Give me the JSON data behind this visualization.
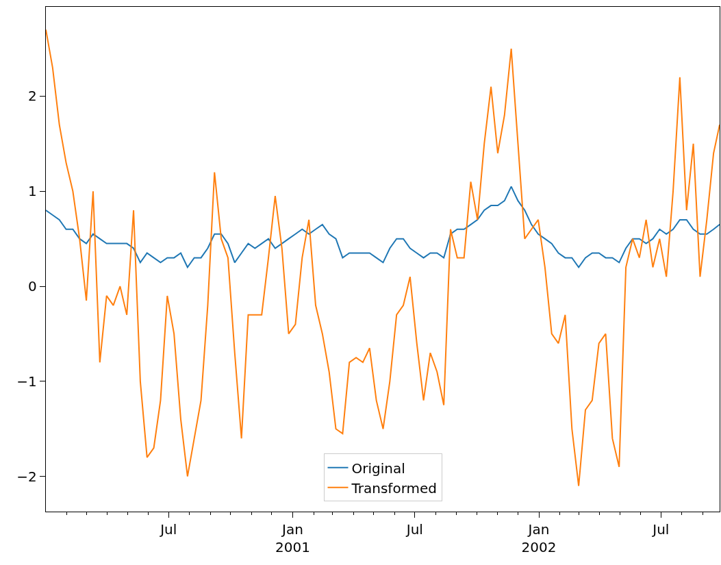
{
  "chart_data": {
    "type": "line",
    "x": [
      "2000-01-01",
      "2000-01-11",
      "2000-01-21",
      "2000-01-31",
      "2000-02-10",
      "2000-02-20",
      "2000-03-01",
      "2000-03-11",
      "2000-03-21",
      "2000-03-31",
      "2000-04-10",
      "2000-04-20",
      "2000-04-30",
      "2000-05-10",
      "2000-05-20",
      "2000-05-30",
      "2000-06-09",
      "2000-06-19",
      "2000-06-29",
      "2000-07-09",
      "2000-07-19",
      "2000-07-29",
      "2000-08-08",
      "2000-08-18",
      "2000-08-28",
      "2000-09-07",
      "2000-09-17",
      "2000-09-27",
      "2000-10-07",
      "2000-10-17",
      "2000-10-27",
      "2000-11-06",
      "2000-11-16",
      "2000-11-26",
      "2000-12-06",
      "2000-12-16",
      "2000-12-26",
      "2001-01-05",
      "2001-01-15",
      "2001-01-25",
      "2001-02-04",
      "2001-02-14",
      "2001-02-24",
      "2001-03-06",
      "2001-03-16",
      "2001-03-26",
      "2001-04-05",
      "2001-04-15",
      "2001-04-25",
      "2001-05-05",
      "2001-05-15",
      "2001-05-25",
      "2001-06-04",
      "2001-06-14",
      "2001-06-24",
      "2001-07-04",
      "2001-07-14",
      "2001-07-24",
      "2001-08-03",
      "2001-08-13",
      "2001-08-23",
      "2001-09-02",
      "2001-09-12",
      "2001-09-22",
      "2001-10-02",
      "2001-10-12",
      "2001-10-22",
      "2001-11-01",
      "2001-11-11",
      "2001-11-21",
      "2001-12-01",
      "2001-12-11",
      "2001-12-21",
      "2001-12-31",
      "2002-01-10",
      "2002-01-20",
      "2002-01-30",
      "2002-02-09",
      "2002-02-19",
      "2002-03-01",
      "2002-03-11",
      "2002-03-21",
      "2002-03-31",
      "2002-04-10",
      "2002-04-20",
      "2002-04-30",
      "2002-05-10",
      "2002-05-20",
      "2002-05-30",
      "2002-06-09",
      "2002-06-19",
      "2002-06-29",
      "2002-07-09",
      "2002-07-19",
      "2002-07-29",
      "2002-08-08",
      "2002-08-18",
      "2002-08-28",
      "2002-09-07",
      "2002-09-17",
      "2002-09-26"
    ],
    "series": [
      {
        "name": "Original",
        "color": "#1f77b4",
        "values": [
          0.8,
          0.75,
          0.7,
          0.6,
          0.6,
          0.5,
          0.45,
          0.55,
          0.5,
          0.45,
          0.45,
          0.45,
          0.45,
          0.4,
          0.25,
          0.35,
          0.3,
          0.25,
          0.3,
          0.3,
          0.35,
          0.2,
          0.3,
          0.3,
          0.4,
          0.55,
          0.55,
          0.45,
          0.25,
          0.35,
          0.45,
          0.4,
          0.45,
          0.5,
          0.4,
          0.45,
          0.5,
          0.55,
          0.6,
          0.55,
          0.6,
          0.65,
          0.55,
          0.5,
          0.3,
          0.35,
          0.35,
          0.35,
          0.35,
          0.3,
          0.25,
          0.4,
          0.5,
          0.5,
          0.4,
          0.35,
          0.3,
          0.35,
          0.35,
          0.3,
          0.55,
          0.6,
          0.6,
          0.65,
          0.7,
          0.8,
          0.85,
          0.85,
          0.9,
          1.05,
          0.9,
          0.8,
          0.65,
          0.55,
          0.5,
          0.45,
          0.35,
          0.3,
          0.3,
          0.2,
          0.3,
          0.35,
          0.35,
          0.3,
          0.3,
          0.25,
          0.4,
          0.5,
          0.5,
          0.45,
          0.5,
          0.6,
          0.55,
          0.6,
          0.7,
          0.7,
          0.6,
          0.55,
          0.55,
          0.6,
          0.65
        ]
      },
      {
        "name": "Transformed",
        "color": "#ff7f0e",
        "values": [
          2.7,
          2.3,
          1.7,
          1.3,
          1.0,
          0.5,
          -0.15,
          1.0,
          -0.8,
          -0.1,
          -0.2,
          0.0,
          -0.3,
          0.8,
          -1.0,
          -1.8,
          -1.7,
          -1.2,
          -0.1,
          -0.5,
          -1.4,
          -2.0,
          -1.6,
          -1.2,
          -0.2,
          1.2,
          0.5,
          0.3,
          -0.7,
          -1.6,
          -0.3,
          -0.3,
          -0.3,
          0.3,
          0.95,
          0.4,
          -0.5,
          -0.4,
          0.3,
          0.7,
          -0.2,
          -0.5,
          -0.9,
          -1.5,
          -1.55,
          -0.8,
          -0.75,
          -0.8,
          -0.65,
          -1.2,
          -1.5,
          -1.0,
          -0.3,
          -0.2,
          0.1,
          -0.6,
          -1.2,
          -0.7,
          -0.9,
          -1.25,
          0.6,
          0.3,
          0.3,
          1.1,
          0.7,
          1.5,
          2.1,
          1.4,
          1.8,
          2.5,
          1.5,
          0.5,
          0.6,
          0.7,
          0.2,
          -0.5,
          -0.6,
          -0.3,
          -1.5,
          -2.1,
          -1.3,
          -1.2,
          -0.6,
          -0.5,
          -1.6,
          -1.9,
          0.2,
          0.5,
          0.3,
          0.7,
          0.2,
          0.5,
          0.1,
          1.0,
          2.2,
          0.8,
          1.5,
          0.1,
          0.7,
          1.4,
          1.7
        ]
      }
    ],
    "xlim": [
      "2000-01-01",
      "2002-09-26"
    ],
    "xticks": [
      {
        "value": "2000-02-01",
        "label": null
      },
      {
        "value": "2000-03-01",
        "label": null
      },
      {
        "value": "2000-04-01",
        "label": null
      },
      {
        "value": "2000-05-01",
        "label": null
      },
      {
        "value": "2000-06-01",
        "label": null
      },
      {
        "value": "2000-07-01",
        "label": "Jul"
      },
      {
        "value": "2000-08-01",
        "label": null
      },
      {
        "value": "2000-09-01",
        "label": null
      },
      {
        "value": "2000-10-01",
        "label": null
      },
      {
        "value": "2000-11-01",
        "label": null
      },
      {
        "value": "2000-12-01",
        "label": null
      },
      {
        "value": "2001-01-01",
        "label": "Jan\n2001"
      },
      {
        "value": "2001-02-01",
        "label": null
      },
      {
        "value": "2001-03-01",
        "label": null
      },
      {
        "value": "2001-04-01",
        "label": null
      },
      {
        "value": "2001-05-01",
        "label": null
      },
      {
        "value": "2001-06-01",
        "label": null
      },
      {
        "value": "2001-07-01",
        "label": "Jul"
      },
      {
        "value": "2001-08-01",
        "label": null
      },
      {
        "value": "2001-09-01",
        "label": null
      },
      {
        "value": "2001-10-01",
        "label": null
      },
      {
        "value": "2001-11-01",
        "label": null
      },
      {
        "value": "2001-12-01",
        "label": null
      },
      {
        "value": "2002-01-01",
        "label": "Jan\n2002"
      },
      {
        "value": "2002-02-01",
        "label": null
      },
      {
        "value": "2002-03-01",
        "label": null
      },
      {
        "value": "2002-04-01",
        "label": null
      },
      {
        "value": "2002-05-01",
        "label": null
      },
      {
        "value": "2002-06-01",
        "label": null
      },
      {
        "value": "2002-07-01",
        "label": "Jul"
      },
      {
        "value": "2002-08-01",
        "label": null
      },
      {
        "value": "2002-09-01",
        "label": null
      }
    ],
    "ylim": [
      -2.37,
      2.94
    ],
    "yticks": [
      {
        "value": -2,
        "label": "−2"
      },
      {
        "value": -1,
        "label": "−1"
      },
      0,
      1,
      2
    ],
    "legend": "bottom",
    "grid": false,
    "marker": "none",
    "line_style": "solid"
  }
}
